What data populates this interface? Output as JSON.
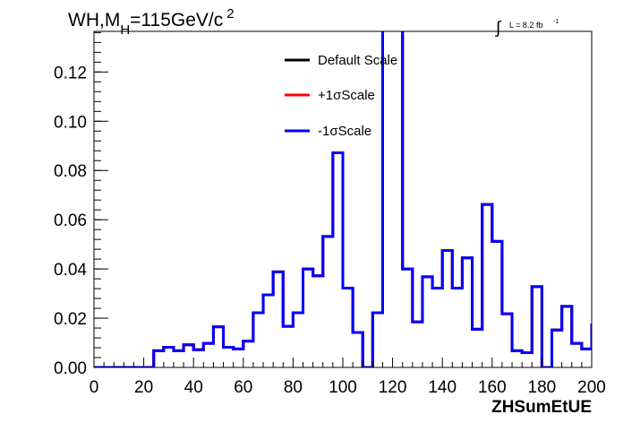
{
  "chart_data": {
    "type": "line",
    "title_main": "WH,M",
    "title_sub": "H",
    "title_rest": "=115GeV/c",
    "title_sup": "2",
    "lumi": {
      "prefix": "L = 8.2 fb",
      "sup": "-1"
    },
    "xlabel": "ZHSumEtUE",
    "ylabel": "",
    "xlim": [
      0,
      200
    ],
    "ylim": [
      0,
      0.1365
    ],
    "x_ticks": [
      "0",
      "20",
      "40",
      "60",
      "80",
      "100",
      "120",
      "140",
      "160",
      "180",
      "200"
    ],
    "y_ticks": [
      "0.00",
      "0.02",
      "0.04",
      "0.06",
      "0.08",
      "0.10",
      "0.12"
    ],
    "grid": false,
    "legend_placement": "top-center",
    "bin_edges": [
      0,
      4,
      8,
      12,
      16,
      20,
      24,
      28,
      32,
      36,
      40,
      44,
      48,
      52,
      56,
      60,
      64,
      68,
      72,
      76,
      80,
      84,
      88,
      92,
      96,
      100,
      104,
      108,
      112,
      116,
      120,
      124,
      128,
      132,
      136,
      140,
      144,
      148,
      152,
      156,
      160,
      164,
      168,
      172,
      176,
      180,
      184,
      188,
      192,
      196,
      200
    ],
    "series": [
      {
        "name": "Default Scale",
        "color": "#000000",
        "values": [
          0,
          0,
          0,
          0,
          0,
          0,
          0.0068,
          0.0082,
          0.0068,
          0.0092,
          0.0072,
          0.0098,
          0.0165,
          0.0082,
          0.0075,
          0.0107,
          0.0222,
          0.0295,
          0.0388,
          0.0167,
          0.0222,
          0.04,
          0.0372,
          0.0532,
          0.0872,
          0.0322,
          0.0142,
          0,
          0.0222,
          0.14,
          0.14,
          0.04,
          0.0185,
          0.0368,
          0.0322,
          0.0475,
          0.0322,
          0.0445,
          0.0155,
          0.0662,
          0.0512,
          0.0218,
          0.0068,
          0.006,
          0.0328,
          0,
          0.0152,
          0.0248,
          0.0098,
          0.0075,
          0.0178
        ]
      },
      {
        "name": "+1σScale",
        "color": "#ff0000",
        "values": [
          0,
          0,
          0,
          0,
          0,
          0,
          0.0068,
          0.0082,
          0.0068,
          0.0092,
          0.0072,
          0.0098,
          0.0165,
          0.0082,
          0.0075,
          0.0107,
          0.0222,
          0.0295,
          0.0388,
          0.0167,
          0.0222,
          0.04,
          0.0372,
          0.0532,
          0.0872,
          0.0322,
          0.0142,
          0,
          0.0222,
          0.14,
          0.14,
          0.04,
          0.0185,
          0.0368,
          0.0322,
          0.0475,
          0.0322,
          0.0445,
          0.0155,
          0.0662,
          0.0512,
          0.0218,
          0.0068,
          0.006,
          0.0328,
          0,
          0.0152,
          0.0248,
          0.0098,
          0.0075,
          0.0178
        ]
      },
      {
        "name": "-1σScale",
        "color": "#0000ff",
        "values": [
          0,
          0,
          0,
          0,
          0,
          0,
          0.0068,
          0.0082,
          0.0068,
          0.0092,
          0.0072,
          0.0098,
          0.0165,
          0.0082,
          0.0075,
          0.0107,
          0.0222,
          0.0295,
          0.0388,
          0.0167,
          0.0222,
          0.04,
          0.0372,
          0.0532,
          0.0872,
          0.0322,
          0.0142,
          0,
          0.0222,
          0.14,
          0.14,
          0.04,
          0.0185,
          0.0368,
          0.0322,
          0.0475,
          0.0322,
          0.0445,
          0.0155,
          0.0662,
          0.0512,
          0.0218,
          0.0068,
          0.006,
          0.0328,
          0,
          0.0152,
          0.0248,
          0.0098,
          0.0075,
          0.0178
        ]
      }
    ]
  }
}
